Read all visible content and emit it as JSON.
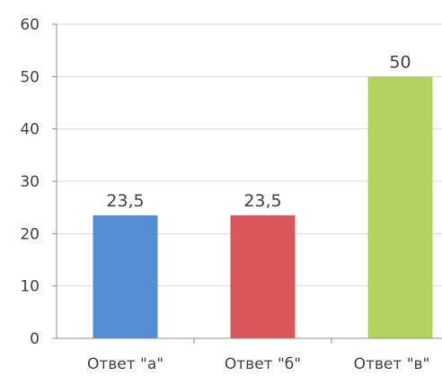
{
  "chart_data": {
    "type": "bar",
    "categories": [
      "Ответ \"а\"",
      "Ответ \"б\"",
      "Ответ \"в\""
    ],
    "values": [
      23.5,
      23.5,
      50
    ],
    "data_labels": [
      "23,5",
      "23,5",
      "50"
    ],
    "colors": [
      "#558ed5",
      "#d9575a",
      "#b0d45e"
    ],
    "ylim": [
      0,
      60
    ],
    "yticks": [
      0,
      10,
      20,
      30,
      40,
      50,
      60
    ],
    "grid": true,
    "legend": "none",
    "title": "",
    "xlabel": "",
    "ylabel": ""
  }
}
